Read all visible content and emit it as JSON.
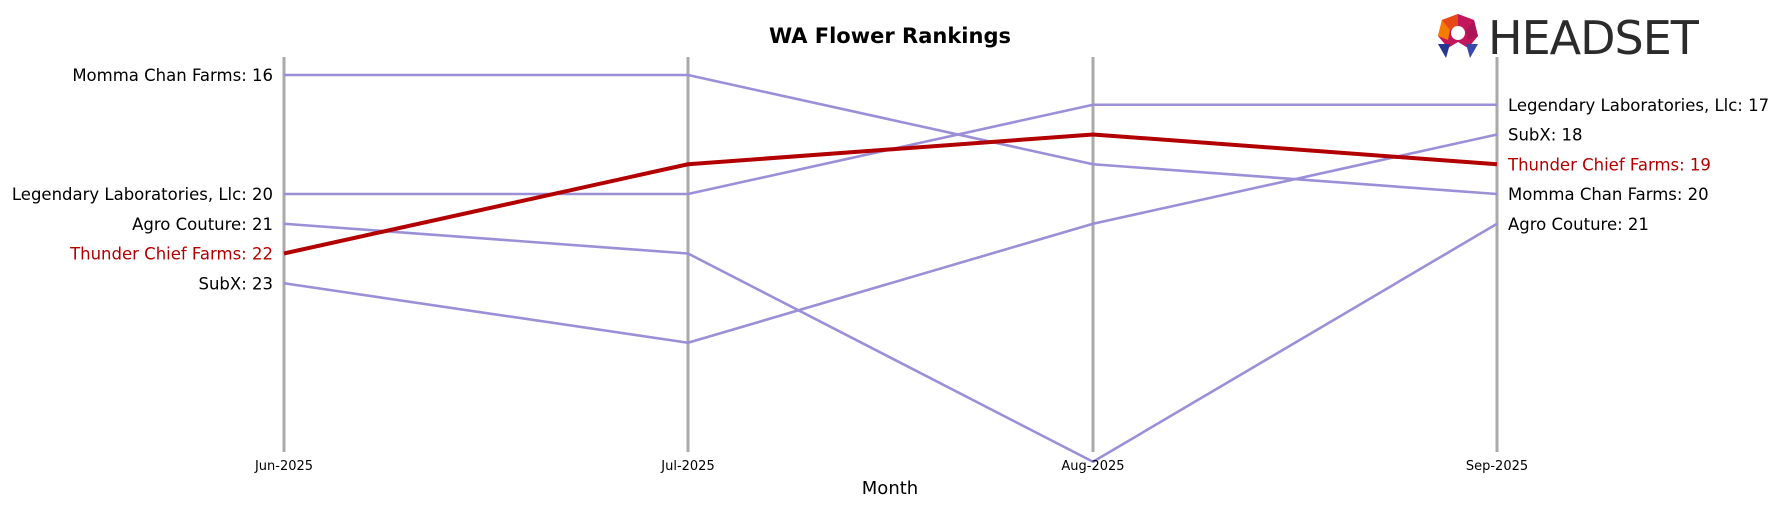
{
  "logo": {
    "text": "HEADSET"
  },
  "chart_data": {
    "type": "line",
    "title": "WA Flower Rankings",
    "xlabel": "Month",
    "ylabel": "",
    "x": [
      "Jun-2025",
      "Jul-2025",
      "Aug-2025",
      "Sep-2025"
    ],
    "y_inverted": true,
    "ylim": [
      15.4,
      29.5
    ],
    "grid": "vertical lines at each month",
    "colors": {
      "highlight": "#b20000",
      "other": "#9b8fd8",
      "gridline": "#aaaaaa"
    },
    "highlight_series": "Thunder Chief Farms",
    "series": [
      {
        "name": "Momma Chan Farms",
        "values": [
          16,
          16,
          19,
          20
        ]
      },
      {
        "name": "Legendary Laboratories, Llc",
        "values": [
          20,
          20,
          17,
          17
        ]
      },
      {
        "name": "Agro Couture",
        "values": [
          21,
          22,
          29,
          21
        ]
      },
      {
        "name": "Thunder Chief Farms",
        "values": [
          22,
          19,
          18,
          19
        ]
      },
      {
        "name": "SubX",
        "values": [
          23,
          25,
          21,
          18
        ]
      }
    ]
  }
}
